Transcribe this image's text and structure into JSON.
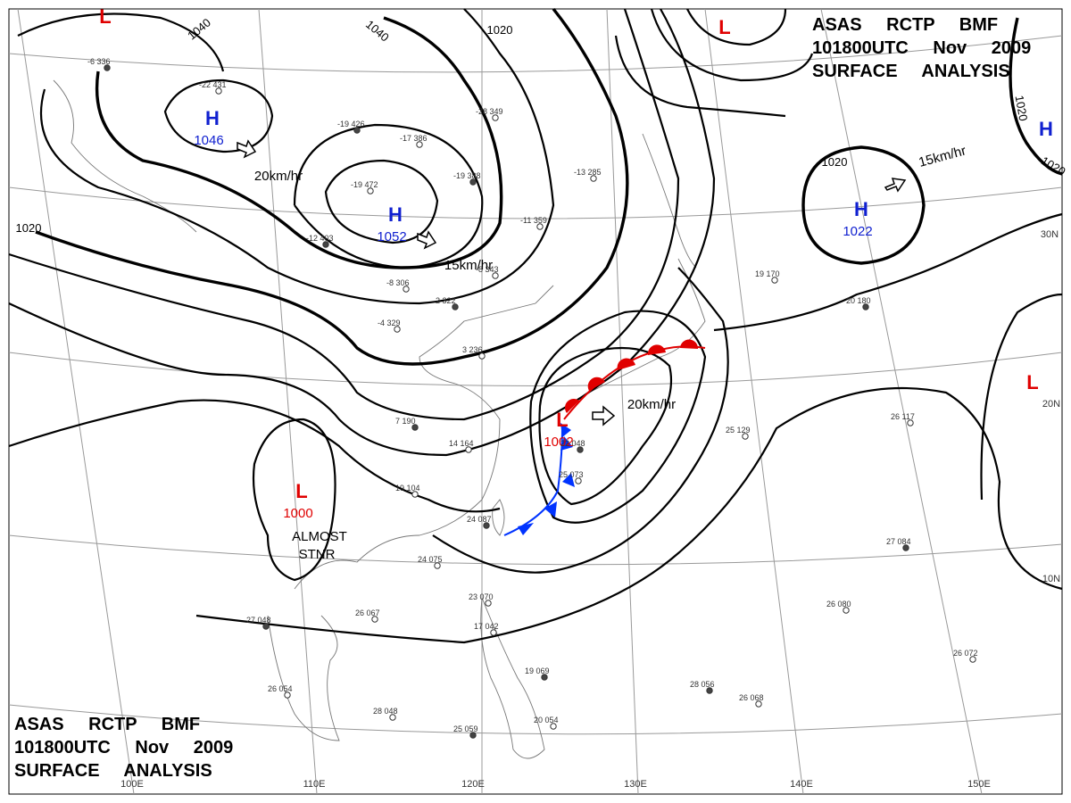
{
  "header_top": {
    "line1": "ASAS RCTP BMF",
    "line2": "101800UTC Nov 2009",
    "line3": "SURFACE ANALYSIS"
  },
  "header_bottom": {
    "line1": "ASAS RCTP BMF",
    "line2": "101800UTC Nov 2009",
    "line3": "SURFACE ANALYSIS"
  },
  "pressure_centers": [
    {
      "type": "H",
      "value": "1046"
    },
    {
      "type": "H",
      "value": "1052"
    },
    {
      "type": "H",
      "value": "1022"
    },
    {
      "type": "L",
      "value": "1000"
    },
    {
      "type": "L",
      "value": "1002"
    },
    {
      "type": "L"
    },
    {
      "type": "L"
    },
    {
      "type": "L"
    },
    {
      "type": "H"
    }
  ],
  "isobar_labels": [
    "1040",
    "1040",
    "1020",
    "1020",
    "1020",
    "1020",
    "1020"
  ],
  "motion_labels": [
    "20km/hr",
    "15km/hr",
    "15km/hr",
    "20km/hr"
  ],
  "annotations": [
    "ALMOST",
    "STNR"
  ],
  "longitude_labels": [
    "100E",
    "110E",
    "120E",
    "130E",
    "140E",
    "150E"
  ],
  "latitude_labels": [
    "30N",
    "20N",
    "10N"
  ],
  "stations": [
    "-6 336",
    "-22 431",
    "-28 349",
    "-19 426",
    "-17 386",
    "-19 472",
    "-19 388",
    "-13 285",
    "-11 359",
    "-12 403",
    "-8 343",
    "-8 306",
    "2 322",
    "-4 329",
    "3 236",
    "7 190",
    "14 164",
    "19 104",
    "24 087",
    "24 075",
    "26 067",
    "27 048",
    "26 054",
    "28 048",
    "25 059",
    "23 070",
    "17 042",
    "19 069",
    "20 054",
    "19 170",
    "20 180",
    "25 129",
    "26 117",
    "27 084",
    "26 080",
    "26 072",
    "28 056",
    "26 068",
    "25 073",
    "22 048"
  ]
}
